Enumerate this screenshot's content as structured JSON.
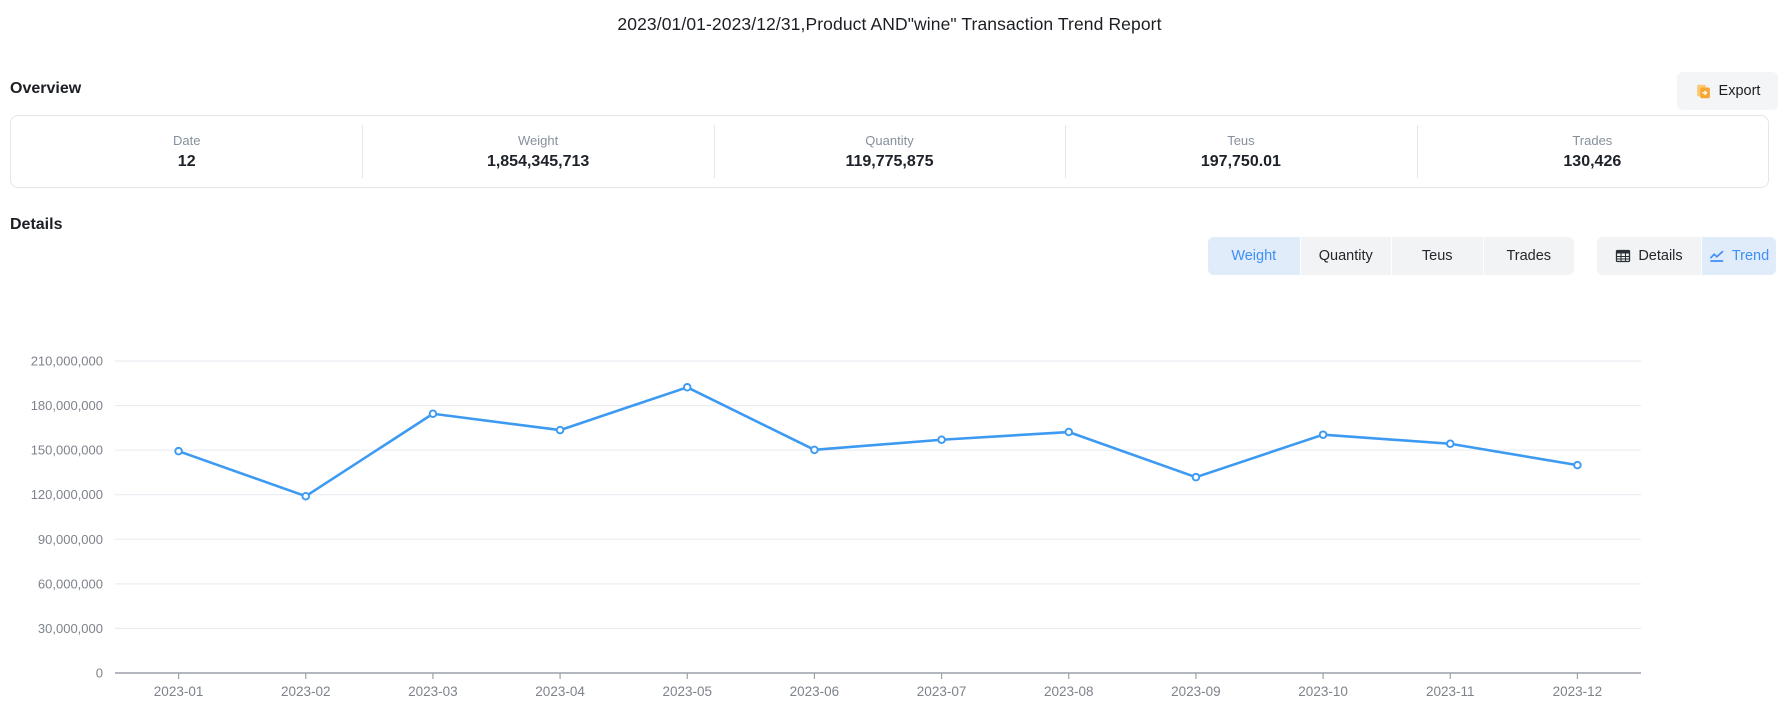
{
  "title": "2023/01/01-2023/12/31,Product AND\"wine\" Transaction Trend Report",
  "overview": {
    "heading": "Overview",
    "export_label": "Export",
    "export_icon": "export-document-icon",
    "stats": [
      {
        "label": "Date",
        "value": "12"
      },
      {
        "label": "Weight",
        "value": "1,854,345,713"
      },
      {
        "label": "Quantity",
        "value": "119,775,875"
      },
      {
        "label": "Teus",
        "value": "197,750.01"
      },
      {
        "label": "Trades",
        "value": "130,426"
      }
    ]
  },
  "details": {
    "heading": "Details",
    "metric_tabs": [
      {
        "label": "Weight",
        "active": true
      },
      {
        "label": "Quantity",
        "active": false
      },
      {
        "label": "Teus",
        "active": false
      },
      {
        "label": "Trades",
        "active": false
      }
    ],
    "view_tabs": [
      {
        "label": "Details",
        "icon": "table-icon",
        "active": false
      },
      {
        "label": "Trend",
        "icon": "line-chart-icon",
        "active": true
      }
    ]
  },
  "colors": {
    "line": "#3d9af2",
    "marker_fill": "#ffffff",
    "grid": "#e7eaf1",
    "axis": "#9ba1a9",
    "active_tab_bg": "#e1ecfb",
    "active_tab_text": "#3e8ff7",
    "tab_bg": "#f2f3f5",
    "export_icon_orange": "#f7a632"
  },
  "chart_data": {
    "type": "line",
    "title": "",
    "xlabel": "",
    "ylabel": "",
    "legend": "none",
    "grid": true,
    "x": [
      "2023-01",
      "2023-02",
      "2023-03",
      "2023-04",
      "2023-05",
      "2023-06",
      "2023-07",
      "2023-08",
      "2023-09",
      "2023-10",
      "2023-11",
      "2023-12"
    ],
    "series": [
      {
        "name": "Weight",
        "values": [
          149300000,
          119000000,
          174500000,
          163500000,
          192300000,
          150200000,
          157000000,
          162200000,
          131800000,
          160400000,
          154300000,
          139900000
        ]
      }
    ],
    "ylim": [
      0,
      210000000
    ],
    "ytick_step": 30000000,
    "yticks": [
      0,
      30000000,
      60000000,
      90000000,
      120000000,
      150000000,
      180000000,
      210000000
    ],
    "ytick_labels": [
      "0",
      "30,000,000",
      "60,000,000",
      "90,000,000",
      "120,000,000",
      "150,000,000",
      "180,000,000",
      "210,000,000"
    ]
  }
}
